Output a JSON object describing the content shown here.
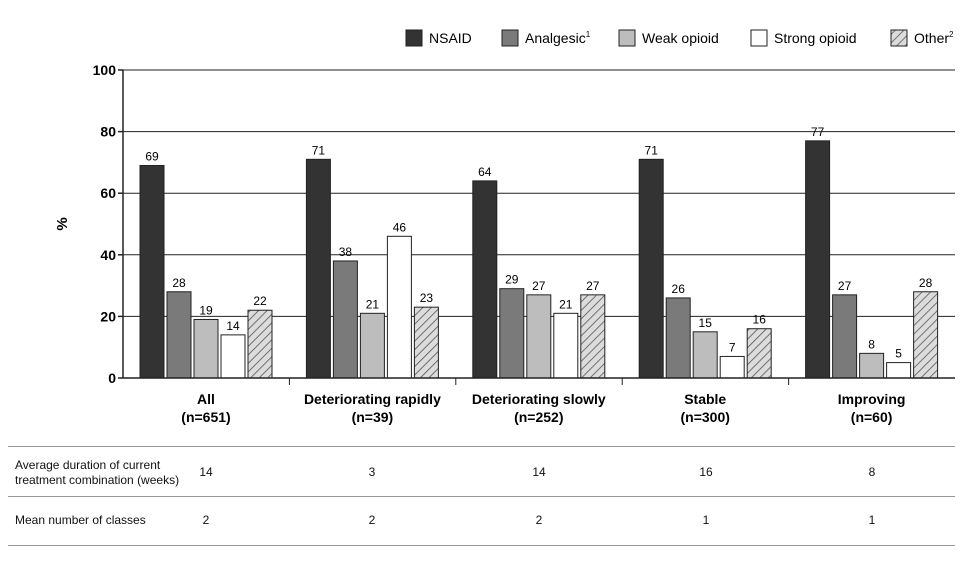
{
  "chart_data": {
    "type": "bar",
    "title": "",
    "ylabel": "%",
    "xlabel": "",
    "ylim": [
      0,
      100
    ],
    "yticks": [
      0,
      20,
      40,
      60,
      80,
      100
    ],
    "legend_position": "top-right",
    "categories": [
      {
        "label": "All",
        "n": "(n=651)"
      },
      {
        "label": "Deteriorating rapidly",
        "n": "(n=39)"
      },
      {
        "label": "Deteriorating slowly",
        "n": "(n=252)"
      },
      {
        "label": "Stable",
        "n": "(n=300)"
      },
      {
        "label": "Improving",
        "n": "(n=60)"
      }
    ],
    "series": [
      {
        "name": "NSAID",
        "sup": "",
        "fill": "#333333",
        "pattern": false,
        "values": [
          69,
          71,
          64,
          71,
          77
        ]
      },
      {
        "name": "Analgesic",
        "sup": "1",
        "fill": "#7a7a7a",
        "pattern": false,
        "values": [
          28,
          38,
          29,
          26,
          27
        ]
      },
      {
        "name": "Weak opioid",
        "sup": "",
        "fill": "#bdbdbd",
        "pattern": false,
        "values": [
          19,
          21,
          27,
          15,
          8
        ]
      },
      {
        "name": "Strong opioid",
        "sup": "",
        "fill": "#ffffff",
        "pattern": false,
        "values": [
          14,
          46,
          21,
          7,
          5
        ]
      },
      {
        "name": "Other",
        "sup": "2",
        "fill": "#d9d9d9",
        "pattern": true,
        "values": [
          22,
          23,
          27,
          16,
          28
        ]
      }
    ]
  },
  "table": {
    "rows": [
      {
        "label_lines": [
          "Average duration of current",
          "treatment combination (weeks)"
        ],
        "values": [
          "14",
          "3",
          "14",
          "16",
          "8"
        ]
      },
      {
        "label_lines": [
          "Mean number of classes"
        ],
        "values": [
          "2",
          "2",
          "2",
          "1",
          "1"
        ]
      }
    ]
  }
}
